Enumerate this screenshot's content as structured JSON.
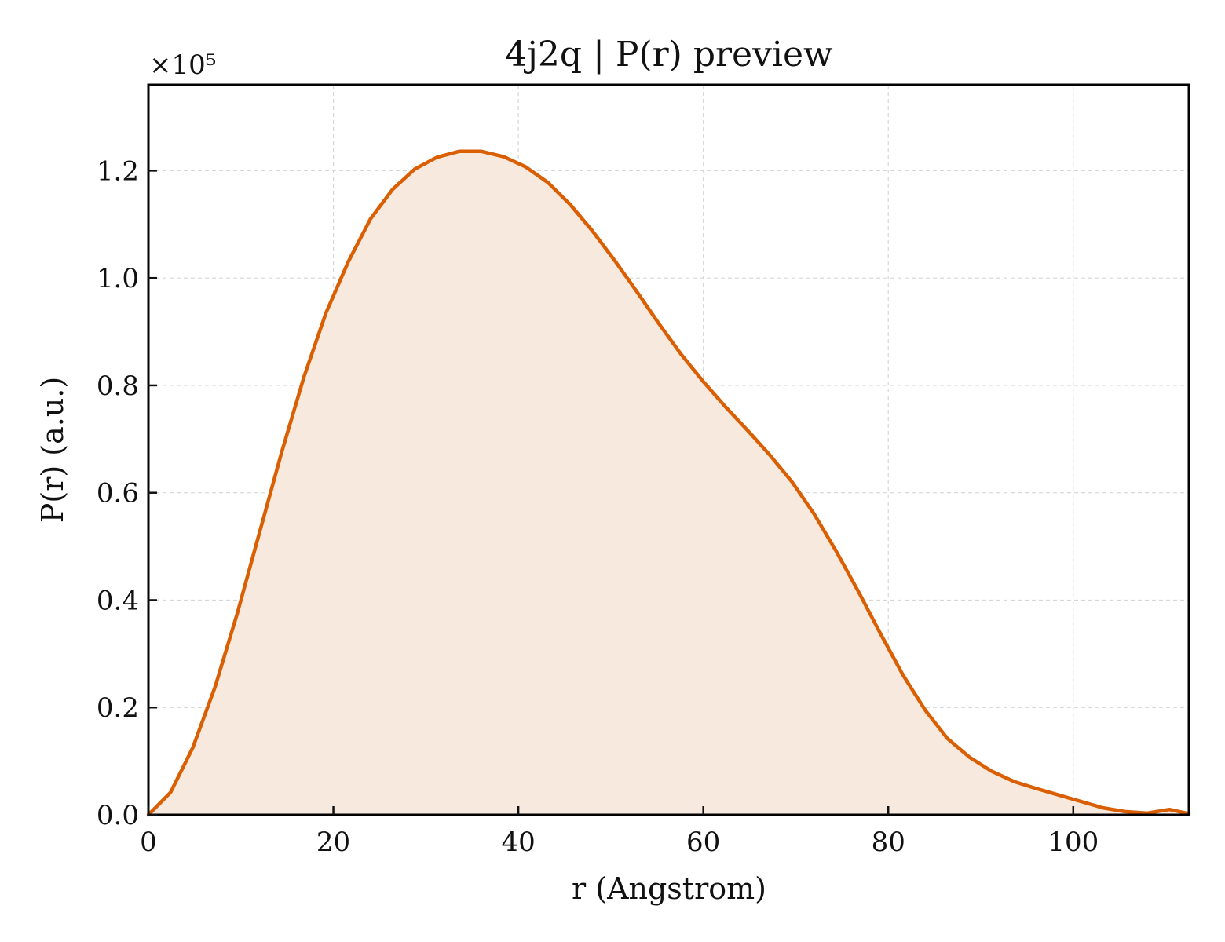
{
  "chart_data": {
    "type": "area",
    "title": "4j2q | P(r) preview",
    "xlabel": "r (Angstrom)",
    "ylabel": "P(r) (a.u.)",
    "y_offset_label": "×10⁵",
    "y_scale": 100000,
    "xlim": [
      0,
      112.5
    ],
    "ylim": [
      0,
      1.36
    ],
    "xticks": [
      0,
      20,
      40,
      60,
      80,
      100
    ],
    "xtick_labels": [
      "0",
      "20",
      "40",
      "60",
      "80",
      "100"
    ],
    "yticks": [
      0,
      0.2,
      0.4,
      0.6,
      0.8,
      1.0,
      1.2
    ],
    "ytick_labels": [
      "0.0",
      "0.2",
      "0.4",
      "0.6",
      "0.8",
      "1.0",
      "1.2"
    ],
    "grid": true,
    "tick_direction": "in",
    "line_color": "#d95f02",
    "fill_color": "#f8e9df",
    "series": [
      {
        "x": [
          0,
          2.4,
          4.8,
          7.2,
          9.6,
          12.0,
          14.4,
          16.8,
          19.2,
          21.6,
          24.0,
          26.4,
          28.8,
          31.2,
          33.6,
          36.0,
          38.4,
          40.8,
          43.2,
          45.6,
          48.0,
          50.4,
          52.8,
          55.2,
          57.6,
          60.0,
          62.4,
          64.8,
          67.2,
          69.6,
          72.0,
          74.4,
          76.8,
          79.2,
          81.6,
          84.0,
          86.4,
          88.8,
          91.2,
          93.6,
          96.0,
          98.4,
          100.8,
          103.2,
          105.6,
          108.0,
          110.4,
          112.5
        ],
        "values": [
          0.0,
          0.042,
          0.125,
          0.238,
          0.375,
          0.525,
          0.675,
          0.815,
          0.935,
          1.03,
          1.11,
          1.165,
          1.203,
          1.225,
          1.236,
          1.236,
          1.226,
          1.207,
          1.178,
          1.137,
          1.088,
          1.033,
          0.975,
          0.915,
          0.858,
          0.807,
          0.76,
          0.716,
          0.67,
          0.62,
          0.56,
          0.49,
          0.415,
          0.336,
          0.26,
          0.195,
          0.142,
          0.107,
          0.081,
          0.062,
          0.049,
          0.037,
          0.025,
          0.013,
          0.006,
          0.003,
          0.01,
          0.002
        ]
      }
    ]
  }
}
